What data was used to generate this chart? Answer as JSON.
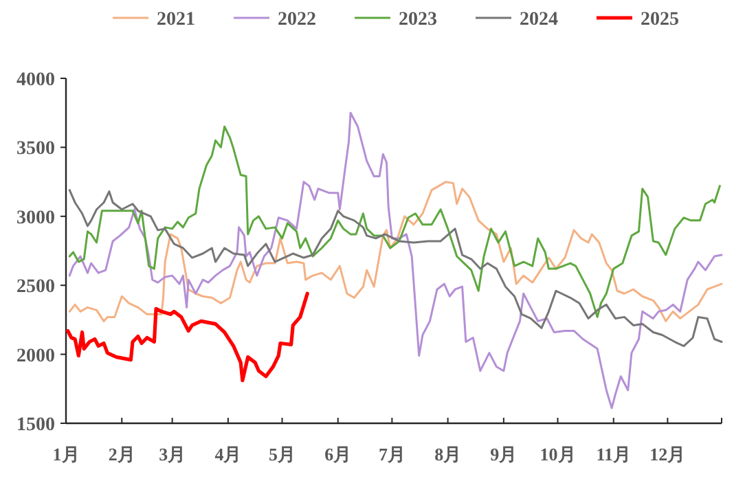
{
  "chart_data": {
    "type": "line",
    "xlim": [
      "--01-01",
      "--12-31"
    ],
    "ylim": [
      1500,
      4000
    ],
    "xticks": [
      {
        "value": "--01-01",
        "label": "1月"
      },
      {
        "value": "--02-01",
        "label": "2月"
      },
      {
        "value": "--03-01",
        "label": "3月"
      },
      {
        "value": "--04-01",
        "label": "4月"
      },
      {
        "value": "--05-01",
        "label": "5月"
      },
      {
        "value": "--06-01",
        "label": "6月"
      },
      {
        "value": "--07-01",
        "label": "7月"
      },
      {
        "value": "--08-01",
        "label": "8月"
      },
      {
        "value": "--09-01",
        "label": "9月"
      },
      {
        "value": "--10-01",
        "label": "10月"
      },
      {
        "value": "--11-01",
        "label": "11月"
      },
      {
        "value": "--12-01",
        "label": "12月"
      },
      {
        "value": "--12-31",
        "label": null
      }
    ],
    "yticks": [
      1500,
      2000,
      2500,
      3000,
      3500,
      4000
    ],
    "grid": false,
    "legend": "top",
    "series": [
      {
        "name": "2021",
        "color": "#f4b183",
        "x": [
          "--01-03",
          "--01-06",
          "--01-09",
          "--01-13",
          "--01-18",
          "--01-22",
          "--01-24",
          "--01-28",
          "--02-01",
          "--02-05",
          "--02-10",
          "--02-15",
          "--02-23",
          "--02-24",
          "--02-25",
          "--02-28",
          "--03-04",
          "--03-06",
          "--03-10",
          "--03-14",
          "--03-18",
          "--03-23",
          "--03-28",
          "--04-02",
          "--04-06",
          "--04-08",
          "--04-11",
          "--04-13",
          "--04-17",
          "--04-22",
          "--04-27",
          "--04-30",
          "--05-04",
          "--05-09",
          "--05-13",
          "--05-14",
          "--05-18",
          "--05-23",
          "--05-28",
          "--06-02",
          "--06-06",
          "--06-10",
          "--06-15",
          "--06-17",
          "--06-21",
          "--06-26",
          "--06-28",
          "--06-30",
          "--07-04",
          "--07-08",
          "--07-13",
          "--07-18",
          "--07-23",
          "--07-31",
          "--08-04",
          "--08-06",
          "--08-09",
          "--08-13",
          "--08-18",
          "--08-23",
          "--08-28",
          "--09-01",
          "--09-05",
          "--09-08",
          "--09-12",
          "--09-17",
          "--09-22",
          "--09-26",
          "--09-30",
          "--10-05",
          "--10-10",
          "--10-14",
          "--10-18",
          "--10-20",
          "--10-24",
          "--10-28",
          "--10-31",
          "--11-03",
          "--11-07",
          "--11-12",
          "--11-17",
          "--11-23",
          "--11-26",
          "--11-30",
          "--12-04",
          "--12-08",
          "--12-13",
          "--12-18",
          "--12-23",
          "--12-31"
        ],
        "values": [
          2310,
          2360,
          2310,
          2340,
          2320,
          2240,
          2270,
          2270,
          2420,
          2370,
          2340,
          2290,
          2290,
          2410,
          2670,
          2870,
          2840,
          2770,
          2470,
          2440,
          2420,
          2410,
          2370,
          2410,
          2610,
          2670,
          2540,
          2520,
          2640,
          2660,
          2660,
          2840,
          2660,
          2670,
          2660,
          2540,
          2570,
          2590,
          2540,
          2640,
          2440,
          2410,
          2490,
          2610,
          2490,
          2860,
          2900,
          2770,
          2840,
          3000,
          2940,
          3020,
          3190,
          3250,
          3240,
          3090,
          3200,
          3140,
          2970,
          2910,
          2870,
          2670,
          2770,
          2510,
          2570,
          2520,
          2620,
          2700,
          2620,
          2700,
          2900,
          2840,
          2810,
          2870,
          2810,
          2660,
          2610,
          2460,
          2440,
          2470,
          2420,
          2390,
          2340,
          2240,
          2310,
          2260,
          2310,
          2360,
          2470,
          2510
        ]
      },
      {
        "name": "2022",
        "color": "#b48fd6",
        "x": [
          "--01-03",
          "--01-05",
          "--01-09",
          "--01-13",
          "--01-15",
          "--01-19",
          "--01-23",
          "--01-27",
          "--01-31",
          "--02-05",
          "--02-08",
          "--02-11",
          "--02-14",
          "--02-16",
          "--02-18",
          "--02-21",
          "--02-25",
          "--03-01",
          "--03-05",
          "--03-07",
          "--03-09",
          "--03-10",
          "--03-14",
          "--03-18",
          "--03-21",
          "--03-25",
          "--03-29",
          "--04-02",
          "--04-06",
          "--04-07",
          "--04-10",
          "--04-11",
          "--04-13",
          "--04-17",
          "--04-21",
          "--04-25",
          "--04-29",
          "--05-04",
          "--05-09",
          "--05-13",
          "--05-16",
          "--05-19",
          "--05-21",
          "--05-27",
          "--06-01",
          "--06-02",
          "--06-05",
          "--06-07",
          "--06-08",
          "--06-12",
          "--06-17",
          "--06-21",
          "--06-24",
          "--06-26",
          "--06-28",
          "--06-29",
          "--07-01",
          "--07-05",
          "--07-09",
          "--07-12",
          "--07-16",
          "--07-18",
          "--07-22",
          "--07-26",
          "--07-30",
          "--08-02",
          "--08-05",
          "--08-09",
          "--08-11",
          "--08-15",
          "--08-19",
          "--08-24",
          "--08-28",
          "--09-01",
          "--09-03",
          "--09-06",
          "--09-10",
          "--09-12",
          "--09-16",
          "--09-20",
          "--09-25",
          "--09-29",
          "--10-05",
          "--10-10",
          "--10-15",
          "--10-23",
          "--10-28",
          "--10-31",
          "--11-02",
          "--11-05",
          "--11-09",
          "--11-11",
          "--11-15",
          "--11-17",
          "--11-23",
          "--11-26",
          "--11-30",
          "--12-04",
          "--12-08",
          "--12-12",
          "--12-16",
          "--12-18",
          "--12-22",
          "--12-27",
          "--12-31"
        ],
        "values": [
          2570,
          2640,
          2710,
          2590,
          2660,
          2590,
          2610,
          2820,
          2860,
          2920,
          3050,
          2910,
          2840,
          2710,
          2540,
          2520,
          2560,
          2570,
          2510,
          2570,
          2340,
          2540,
          2440,
          2540,
          2520,
          2570,
          2610,
          2640,
          2740,
          2920,
          2860,
          2710,
          2740,
          2570,
          2710,
          2770,
          2990,
          2970,
          2910,
          3250,
          3220,
          3120,
          3200,
          3170,
          3170,
          3050,
          3350,
          3540,
          3750,
          3650,
          3400,
          3290,
          3290,
          3450,
          3390,
          3070,
          2840,
          2840,
          2870,
          2710,
          1990,
          2140,
          2240,
          2470,
          2510,
          2420,
          2470,
          2490,
          2090,
          2120,
          1880,
          2010,
          1910,
          1880,
          2010,
          2110,
          2240,
          2440,
          2340,
          2240,
          2260,
          2160,
          2170,
          2170,
          2110,
          2040,
          1740,
          1610,
          1710,
          1840,
          1740,
          2010,
          2110,
          2310,
          2260,
          2310,
          2320,
          2360,
          2310,
          2540,
          2620,
          2670,
          2610,
          2710,
          2720
        ]
      },
      {
        "name": "2023",
        "color": "#5ea83f",
        "x": [
          "--01-03",
          "--01-05",
          "--01-08",
          "--01-11",
          "--01-13",
          "--01-15",
          "--01-18",
          "--01-21",
          "--01-26",
          "--01-31",
          "--02-05",
          "--02-07",
          "--02-10",
          "--02-12",
          "--02-16",
          "--02-19",
          "--02-21",
          "--02-25",
          "--03-01",
          "--03-04",
          "--03-07",
          "--03-10",
          "--03-14",
          "--03-16",
          "--03-20",
          "--03-23",
          "--03-25",
          "--03-28",
          "--03-30",
          "--04-02",
          "--04-04",
          "--04-08",
          "--04-11",
          "--04-12",
          "--04-15",
          "--04-18",
          "--04-22",
          "--04-27",
          "--05-01",
          "--05-04",
          "--05-09",
          "--05-11",
          "--05-14",
          "--05-18",
          "--05-23",
          "--05-28",
          "--06-01",
          "--06-04",
          "--06-08",
          "--06-11",
          "--06-15",
          "--06-17",
          "--06-21",
          "--06-26",
          "--06-30",
          "--07-05",
          "--07-10",
          "--07-14",
          "--07-18",
          "--07-23",
          "--07-28",
          "--08-01",
          "--08-06",
          "--08-10",
          "--08-14",
          "--08-18",
          "--08-21",
          "--08-25",
          "--08-29",
          "--09-02",
          "--09-07",
          "--09-12",
          "--09-17",
          "--09-20",
          "--09-24",
          "--09-26",
          "--09-30",
          "--10-08",
          "--10-11",
          "--10-15",
          "--10-19",
          "--10-23",
          "--10-25",
          "--10-28",
          "--11-01",
          "--11-06",
          "--11-11",
          "--11-15",
          "--11-17",
          "--11-20",
          "--11-23",
          "--11-26",
          "--11-30",
          "--12-05",
          "--12-10",
          "--12-14",
          "--12-19",
          "--12-22",
          "--12-26",
          "--12-27",
          "--12-30"
        ],
        "values": [
          2710,
          2740,
          2670,
          2690,
          2890,
          2870,
          2810,
          3040,
          3040,
          3040,
          3040,
          3040,
          2950,
          3040,
          2640,
          2620,
          2840,
          2920,
          2910,
          2960,
          2920,
          2990,
          3020,
          3200,
          3370,
          3440,
          3550,
          3500,
          3650,
          3570,
          3490,
          3300,
          3290,
          2870,
          2970,
          3000,
          2910,
          2920,
          2840,
          2950,
          2890,
          2770,
          2840,
          2710,
          2770,
          2840,
          2970,
          2910,
          2870,
          2870,
          3020,
          2910,
          2860,
          2860,
          2770,
          2820,
          2990,
          3020,
          2940,
          2940,
          3050,
          2910,
          2710,
          2660,
          2610,
          2460,
          2710,
          2910,
          2810,
          2890,
          2640,
          2670,
          2640,
          2840,
          2740,
          2620,
          2620,
          2660,
          2640,
          2540,
          2440,
          2270,
          2370,
          2440,
          2620,
          2660,
          2860,
          2890,
          3200,
          3140,
          2820,
          2810,
          2720,
          2910,
          2990,
          2970,
          2970,
          3090,
          3120,
          3100,
          3220
        ]
      },
      {
        "name": "2024",
        "color": "#767676",
        "x": [
          "--01-03",
          "--01-06",
          "--01-10",
          "--01-13",
          "--01-15",
          "--01-18",
          "--01-22",
          "--01-25",
          "--01-27",
          "--02-01",
          "--02-07",
          "--02-10",
          "--02-17",
          "--02-21",
          "--02-25",
          "--03-02",
          "--03-07",
          "--03-12",
          "--03-18",
          "--03-23",
          "--03-25",
          "--03-30",
          "--04-04",
          "--04-10",
          "--04-12",
          "--04-17",
          "--04-22",
          "--04-27",
          "--05-02",
          "--05-07",
          "--05-13",
          "--05-18",
          "--05-23",
          "--05-28",
          "--06-01",
          "--06-04",
          "--06-10",
          "--06-15",
          "--06-17",
          "--06-22",
          "--06-27",
          "--07-05",
          "--07-13",
          "--07-21",
          "--07-28",
          "--08-05",
          "--08-09",
          "--08-14",
          "--08-19",
          "--08-23",
          "--08-28",
          "--09-02",
          "--09-07",
          "--09-11",
          "--09-16",
          "--09-22",
          "--09-26",
          "--09-30",
          "--10-08",
          "--10-13",
          "--10-18",
          "--10-23",
          "--10-28",
          "--11-02",
          "--11-07",
          "--11-12",
          "--11-17",
          "--11-23",
          "--11-28",
          "--12-05",
          "--12-10",
          "--12-15",
          "--12-18",
          "--12-23",
          "--12-27",
          "--12-31"
        ],
        "values": [
          3190,
          3100,
          3020,
          2930,
          2970,
          3050,
          3100,
          3180,
          3100,
          3050,
          3090,
          3040,
          3000,
          2900,
          2910,
          2800,
          2770,
          2700,
          2730,
          2770,
          2670,
          2770,
          2730,
          2720,
          2640,
          2730,
          2800,
          2670,
          2700,
          2730,
          2700,
          2720,
          2840,
          2910,
          3040,
          3000,
          2970,
          2920,
          2860,
          2840,
          2870,
          2820,
          2810,
          2820,
          2820,
          2910,
          2720,
          2690,
          2620,
          2660,
          2620,
          2490,
          2420,
          2290,
          2260,
          2190,
          2310,
          2460,
          2410,
          2370,
          2260,
          2320,
          2360,
          2260,
          2270,
          2210,
          2220,
          2160,
          2140,
          2090,
          2060,
          2120,
          2270,
          2260,
          2110,
          2090
        ]
      },
      {
        "name": "2025",
        "color": "#ff0000",
        "x": [
          "--01-02",
          "--01-04",
          "--01-06",
          "--01-08",
          "--01-10",
          "--01-11",
          "--01-14",
          "--01-17",
          "--01-19",
          "--01-22",
          "--01-24",
          "--01-29",
          "--02-06",
          "--02-07",
          "--02-10",
          "--02-12",
          "--02-15",
          "--02-19",
          "--02-20",
          "--02-23",
          "--02-28",
          "--03-02",
          "--03-06",
          "--03-10",
          "--03-12",
          "--03-17",
          "--03-25",
          "--03-30",
          "--04-04",
          "--04-08",
          "--04-09",
          "--04-12",
          "--04-16",
          "--04-18",
          "--04-22",
          "--04-26",
          "--04-29",
          "--04-30",
          "--05-06",
          "--05-07",
          "--05-11",
          "--05-15"
        ],
        "values": [
          2170,
          2120,
          2110,
          1990,
          2160,
          2040,
          2090,
          2110,
          2060,
          2080,
          2010,
          1980,
          1960,
          2090,
          2130,
          2080,
          2120,
          2090,
          2330,
          2310,
          2290,
          2310,
          2270,
          2170,
          2210,
          2240,
          2220,
          2160,
          2060,
          1940,
          1810,
          1980,
          1940,
          1880,
          1840,
          1910,
          1990,
          2080,
          2070,
          2210,
          2270,
          2440
        ]
      }
    ]
  }
}
